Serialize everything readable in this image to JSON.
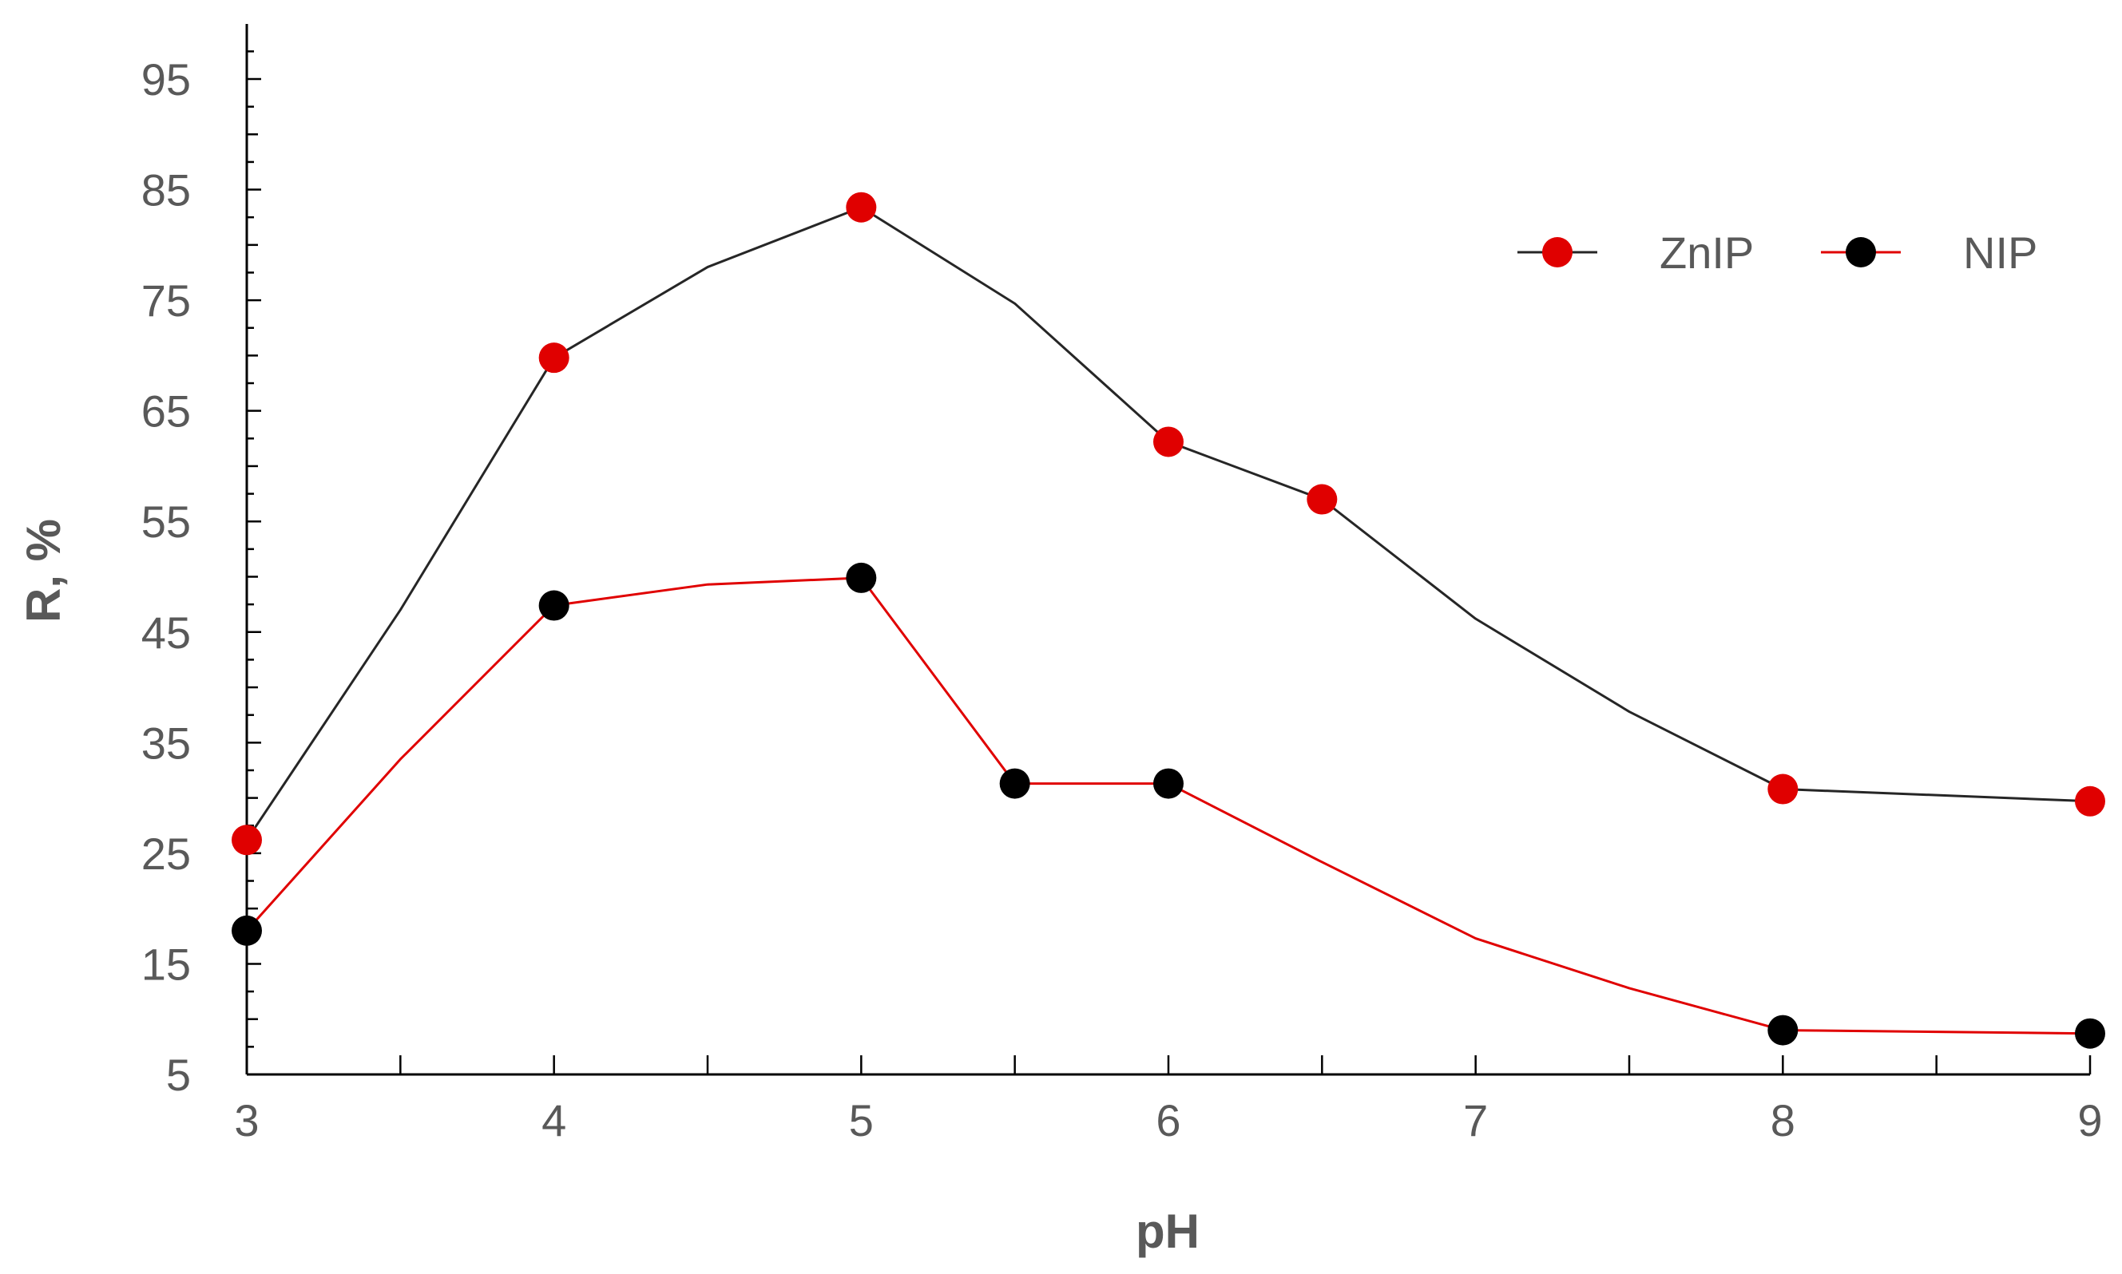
{
  "chart_data": {
    "type": "line",
    "title": "",
    "xlabel": "pH",
    "ylabel": "R, %",
    "xlim": [
      3,
      9
    ],
    "ylim": [
      5,
      100
    ],
    "x_ticks": [
      "3",
      "4",
      "5",
      "6",
      "7",
      "8",
      "9"
    ],
    "y_ticks": [
      "5",
      "15",
      "25",
      "35",
      "45",
      "55",
      "65",
      "75",
      "85",
      "95"
    ],
    "grid": false,
    "legend_position": "top-right",
    "legend": [
      {
        "name": "ZnIP",
        "line_color": "#262626",
        "marker_color": "#e00000"
      },
      {
        "name": "NIP",
        "line_color": "#e00000",
        "marker_color": "#000000"
      }
    ],
    "series": [
      {
        "name": "ZnIP",
        "line_color": "#262626",
        "marker_color": "#e00000",
        "x": [
          3,
          3.5,
          4,
          4.5,
          5,
          5.5,
          6,
          6.5,
          7,
          7.5,
          8,
          9
        ],
        "y": [
          26.2,
          47,
          69.8,
          78,
          83.4,
          74.7,
          62.2,
          57,
          46.2,
          37.8,
          30.8,
          29.7
        ],
        "markers": [
          true,
          false,
          true,
          false,
          true,
          false,
          true,
          true,
          false,
          false,
          true,
          true
        ]
      },
      {
        "name": "NIP",
        "line_color": "#e00000",
        "marker_color": "#000000",
        "x": [
          3,
          3.5,
          4,
          4.5,
          5,
          5.5,
          6,
          6.5,
          7,
          7.5,
          8,
          9
        ],
        "y": [
          18,
          33.5,
          47.4,
          49.3,
          49.9,
          31.3,
          31.3,
          24.2,
          17.3,
          12.8,
          9,
          8.7
        ],
        "markers": [
          true,
          false,
          true,
          false,
          true,
          true,
          true,
          false,
          false,
          false,
          true,
          true
        ]
      }
    ]
  }
}
